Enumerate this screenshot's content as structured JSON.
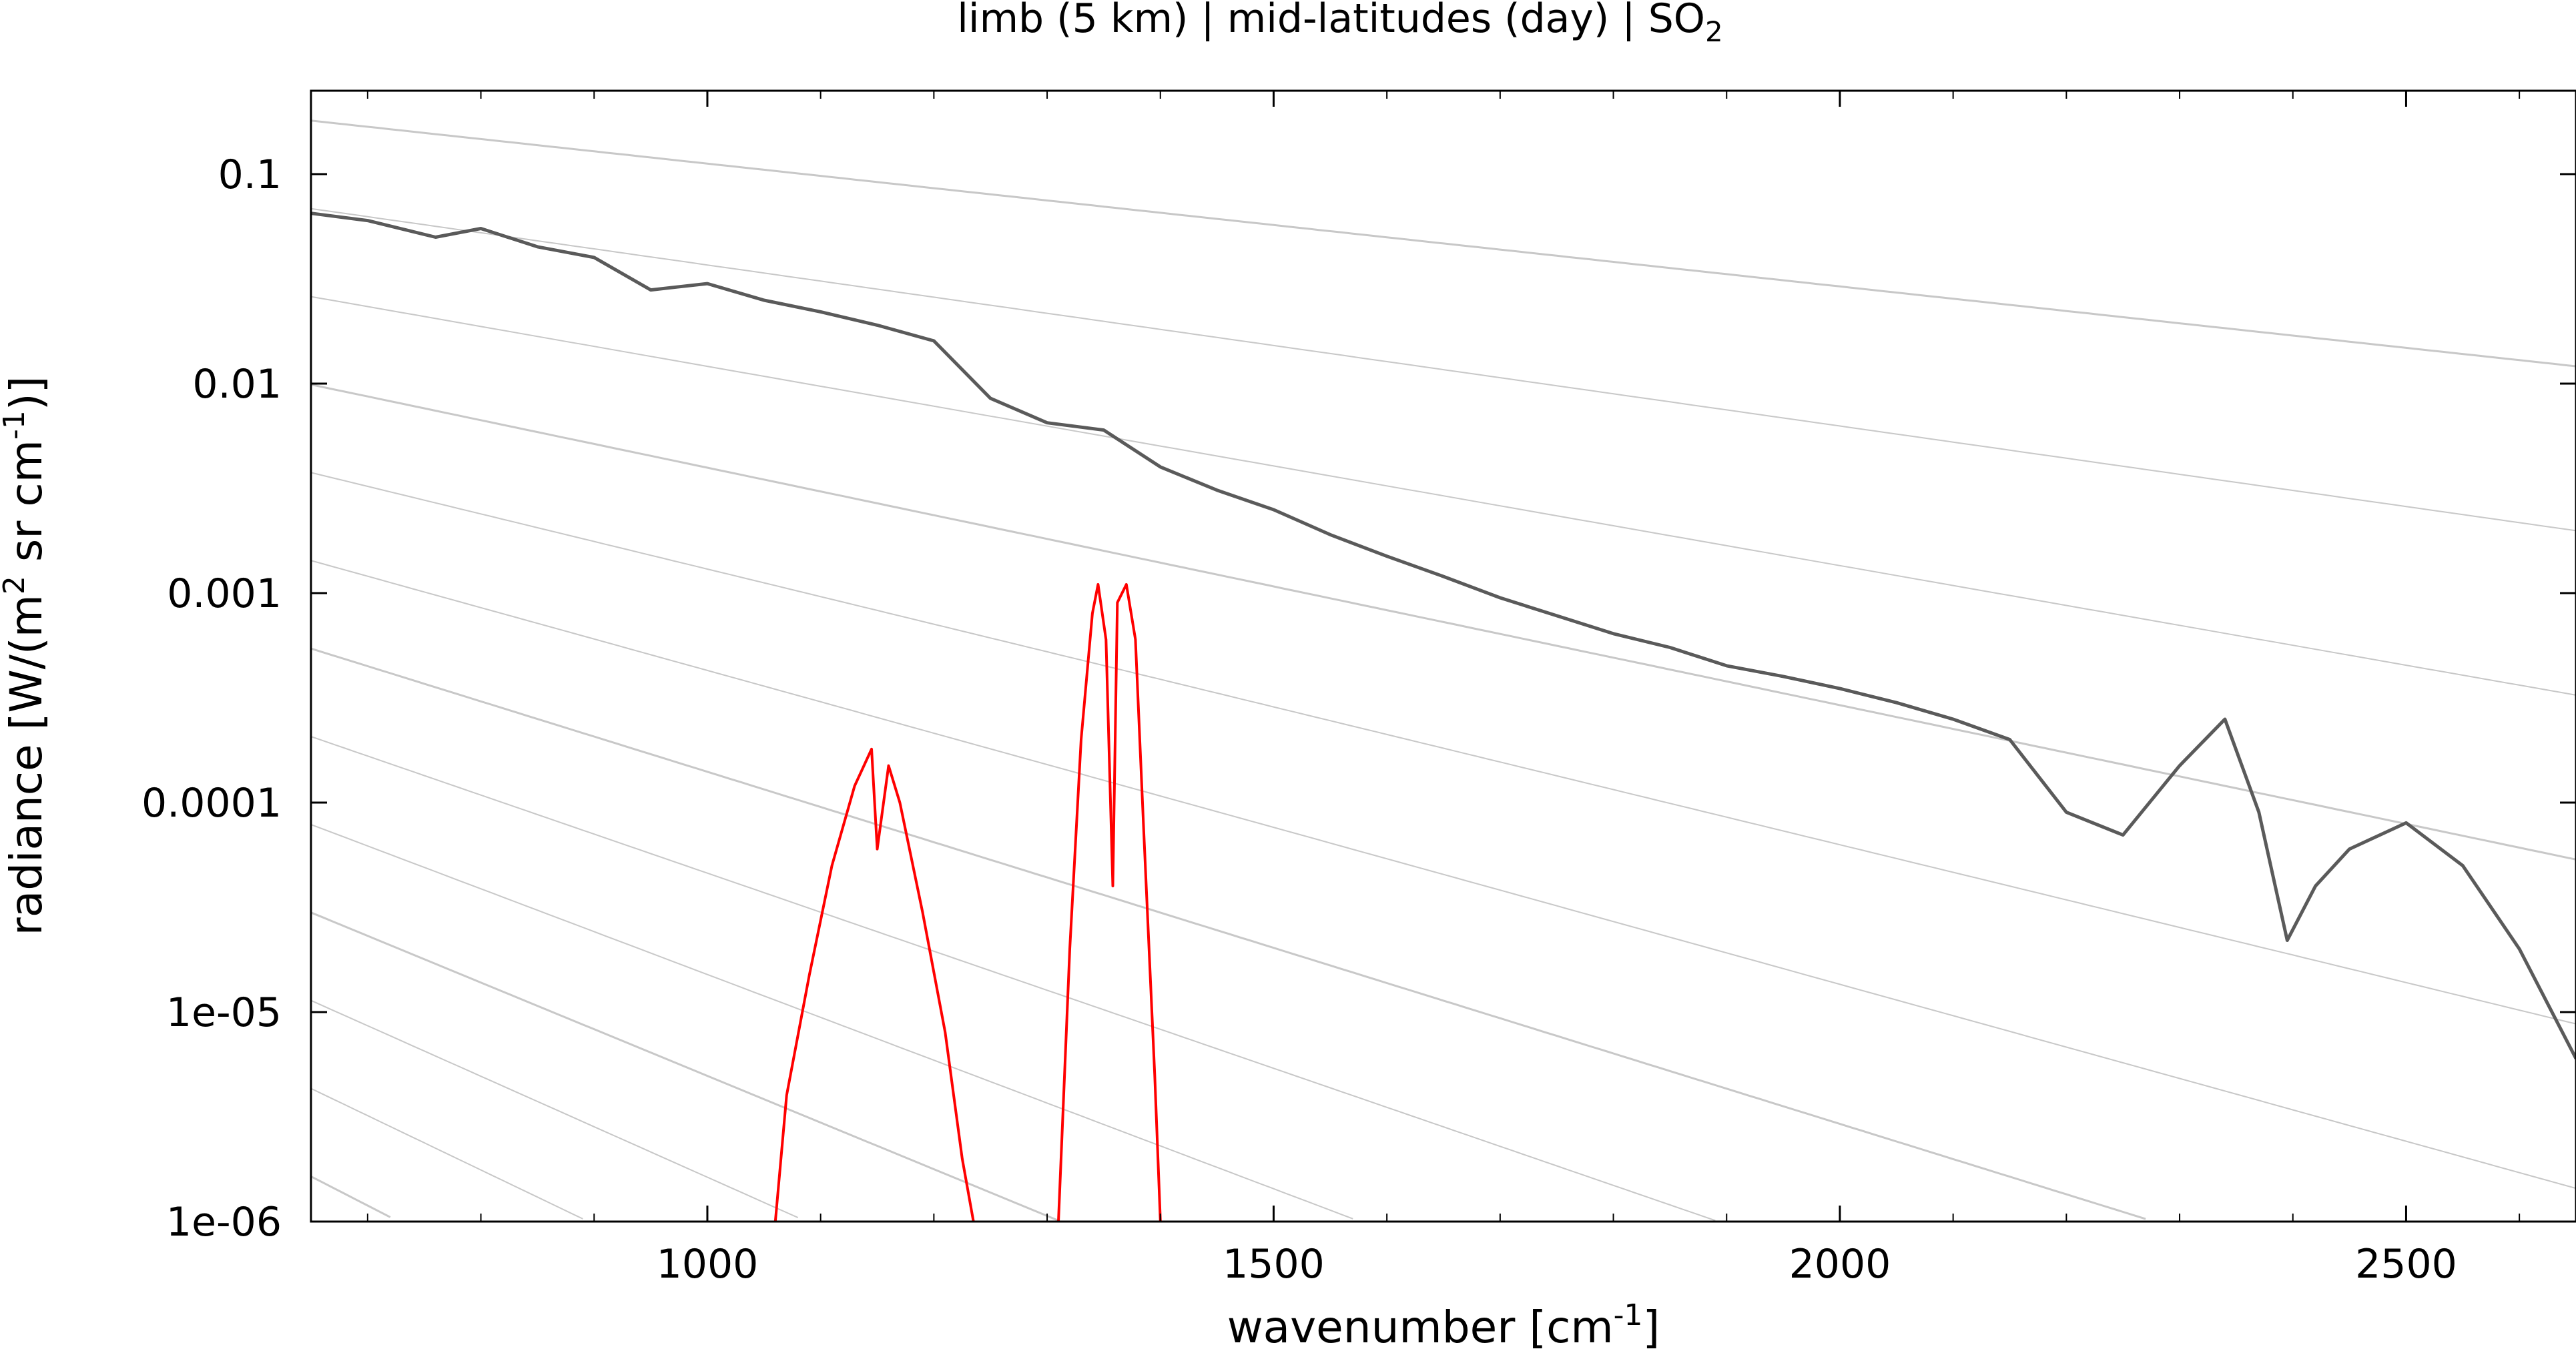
{
  "chart_data": {
    "type": "line",
    "title": "limb (5 km) | mid-latitudes (day) | SO",
    "title_subscript": "2",
    "xlabel": "wavenumber [cm",
    "xlabel_sup": "-1",
    "xlabel_end": "]",
    "ylabel_parts": [
      "radiance [W/(m",
      "2",
      " sr cm",
      "-1",
      ")]"
    ],
    "y_scale": "log",
    "xlim": [
      650,
      2650
    ],
    "ylim": [
      1e-06,
      0.25
    ],
    "x_ticks": [
      1000,
      1500,
      2000,
      2500
    ],
    "x_tick_labels": [
      "1000",
      "1500",
      "2000",
      "2500"
    ],
    "y_ticks": [
      0.1,
      0.01,
      0.001,
      0.0001,
      1e-05,
      1e-06
    ],
    "y_tick_labels": [
      "0.1",
      "0.01",
      "0.001",
      "0.0001",
      "1e-05",
      "1e-06"
    ],
    "grid": false,
    "colors": {
      "total_radiance": "#5a5a5a",
      "so2_contribution": "#ff0000",
      "reference_curves": "#c8c8c8"
    },
    "reference_curve_count": 14,
    "series": [
      {
        "role": "total_radiance",
        "x": [
          650,
          700,
          760,
          800,
          850,
          900,
          950,
          1000,
          1050,
          1100,
          1150,
          1200,
          1250,
          1300,
          1350,
          1400,
          1450,
          1500,
          1550,
          1600,
          1650,
          1700,
          1750,
          1800,
          1850,
          1900,
          1950,
          2000,
          2050,
          2100,
          2150,
          2200,
          2250,
          2300,
          2340,
          2370,
          2395,
          2420,
          2450,
          2500,
          2550,
          2600,
          2650
        ],
        "values": [
          0.065,
          0.06,
          0.05,
          0.055,
          0.045,
          0.04,
          0.028,
          0.03,
          0.025,
          0.022,
          0.019,
          0.016,
          0.0085,
          0.0065,
          0.006,
          0.004,
          0.0031,
          0.0025,
          0.0019,
          0.0015,
          0.0012,
          0.00095,
          0.00078,
          0.00064,
          0.00055,
          0.00045,
          0.0004,
          0.00035,
          0.0003,
          0.00025,
          0.0002,
          9e-05,
          7e-05,
          0.00015,
          0.00025,
          9e-05,
          2.2e-05,
          4e-05,
          6e-05,
          8e-05,
          5e-05,
          2e-05,
          6e-06
        ]
      },
      {
        "role": "so2_band_1",
        "x": [
          1060,
          1070,
          1090,
          1110,
          1130,
          1145,
          1150,
          1160,
          1170,
          1190,
          1210,
          1225,
          1235
        ],
        "values": [
          1e-06,
          4e-06,
          1.5e-05,
          5e-05,
          0.00012,
          0.00018,
          6e-05,
          0.00015,
          0.0001,
          3e-05,
          8e-06,
          2e-06,
          1e-06
        ]
      },
      {
        "role": "so2_band_2",
        "x": [
          1310,
          1320,
          1330,
          1340,
          1345,
          1352,
          1358,
          1362,
          1370,
          1378,
          1385,
          1395,
          1400
        ],
        "values": [
          1e-06,
          2e-05,
          0.0002,
          0.0008,
          0.0011,
          0.0006,
          4e-05,
          0.0009,
          0.0011,
          0.0006,
          8e-05,
          5e-06,
          1e-06
        ]
      }
    ]
  }
}
